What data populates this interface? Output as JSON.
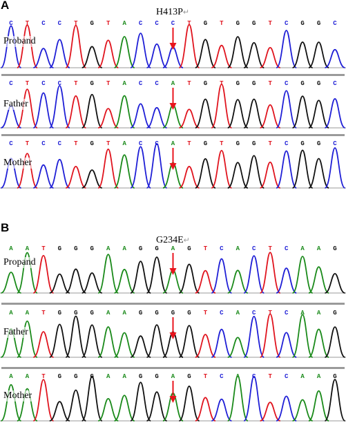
{
  "panels": [
    {
      "letter": "A",
      "mutation": "H413P",
      "mutation_mark": "↵",
      "tracks": [
        {
          "label": "Proband",
          "seq": [
            "C",
            "T",
            "C",
            "C",
            "T",
            "G",
            "T",
            "A",
            "C",
            "C",
            "C",
            "T",
            "G",
            "T",
            "G",
            "G",
            "T",
            "C",
            "G",
            "G",
            "C"
          ],
          "arrow_base": 10
        },
        {
          "label": "Father",
          "seq": [
            "C",
            "T",
            "C",
            "C",
            "T",
            "G",
            "T",
            "A",
            "C",
            "C",
            "A",
            "T",
            "G",
            "T",
            "G",
            "G",
            "T",
            "C",
            "G",
            "G",
            "C"
          ],
          "arrow_base": 10
        },
        {
          "label": "Mother",
          "seq": [
            "C",
            "T",
            "C",
            "C",
            "T",
            "G",
            "T",
            "A",
            "C",
            "C",
            "A",
            "T",
            "G",
            "T",
            "G",
            "G",
            "T",
            "C",
            "G",
            "G",
            "C"
          ],
          "arrow_base": 10
        }
      ]
    },
    {
      "letter": "B",
      "mutation": "G234E",
      "mutation_mark": "↵",
      "tracks": [
        {
          "label": "Propand",
          "seq": [
            "A",
            "A",
            "T",
            "G",
            "G",
            "G",
            "A",
            "A",
            "G",
            "G",
            "A",
            "G",
            "T",
            "C",
            "A",
            "C",
            "T",
            "C",
            "A",
            "A",
            "G"
          ],
          "arrow_base": 10
        },
        {
          "label": "Father",
          "seq": [
            "A",
            "A",
            "T",
            "G",
            "G",
            "G",
            "A",
            "A",
            "G",
            "G",
            "G",
            "G",
            "T",
            "C",
            "A",
            "C",
            "T",
            "C",
            "A",
            "A",
            "G"
          ],
          "arrow_base": 10
        },
        {
          "label": "Mother",
          "seq": [
            "A",
            "A",
            "T",
            "G",
            "G",
            "G",
            "A",
            "A",
            "G",
            "G",
            "A",
            "G",
            "T",
            "C",
            "A",
            "C",
            "T",
            "C",
            "A",
            "A",
            "G"
          ],
          "arrow_base": 10
        }
      ]
    }
  ],
  "base_colors": {
    "C": "#1f1fd6",
    "T": "#e0141e",
    "G": "#111111",
    "A": "#1a8a1a"
  },
  "arrow_color": "#e8141c"
}
